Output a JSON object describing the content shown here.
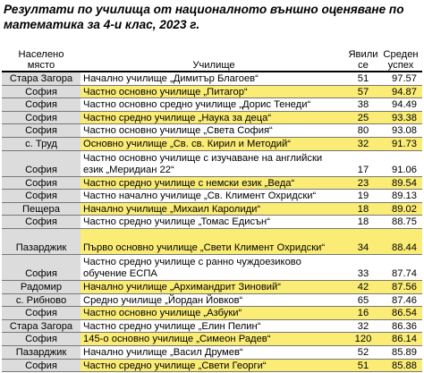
{
  "title": "Резултати по училища от националното външно оценяване по математика за 4-и клас, 2023 г.",
  "headers": {
    "town": "Населено\nмясто",
    "school": "Училище",
    "appeared": "Явили\nсе",
    "score": "Среден\nуспех"
  },
  "colors": {
    "highlight": "#faec75",
    "town_cell": "#dcdcdc"
  },
  "rows": [
    {
      "town": "Стара Загора",
      "school": "Начално училище „Димитър Благоев“",
      "appeared": "51",
      "score": "97.57"
    },
    {
      "town": "София",
      "school": "Частно основно училище „Питагор“",
      "appeared": "57",
      "score": "94.87"
    },
    {
      "town": "София",
      "school": "Частно основно средно училище „Дорис Тенеди“",
      "appeared": "38",
      "score": "94.49"
    },
    {
      "town": "София",
      "school": "Частно средно училище „Наука за деца“",
      "appeared": "25",
      "score": "93.38"
    },
    {
      "town": "София",
      "school": "Частно основно училище „Света София“",
      "appeared": "80",
      "score": "93.08"
    },
    {
      "town": "с. Труд",
      "school": "Основно училище „Св. св. Кирил и Методий“",
      "appeared": "32",
      "score": "91.73"
    },
    {
      "town": "София",
      "school": "Частно основно училище с изучаване на английски език „Меридиан 22“",
      "appeared": "17",
      "score": "91.06"
    },
    {
      "town": "София",
      "school": "Частно средно училище с немски език „Веда“",
      "appeared": "23",
      "score": "89.54"
    },
    {
      "town": "София",
      "school": "Частно начално училище „Св. Климент Охридски“",
      "appeared": "19",
      "score": "89.13"
    },
    {
      "town": "Пещера",
      "school": "Начално училище „Михаил Каролиди“",
      "appeared": "18",
      "score": "89.02"
    },
    {
      "town": "София",
      "school": "Частно средно училище „Томас Едисън“",
      "appeared": "18",
      "score": "88.75"
    },
    {
      "town": "Пазарджик",
      "school": "Първо основно училище „Свети Климент Охридски“",
      "appeared": "34",
      "score": "88.44"
    },
    {
      "town": "София",
      "school": "Частно средно училище с ранно чуждоезиково обучение ЕСПА",
      "appeared": "33",
      "score": "87.74"
    },
    {
      "town": "Радомир",
      "school": "Начално училище „Архимандрит Зиновий“",
      "appeared": "42",
      "score": "87.56"
    },
    {
      "town": "с. Рибново",
      "school": "Средно училище „Йордан Йовков“",
      "appeared": "65",
      "score": "87.46"
    },
    {
      "town": "София",
      "school": "Частно основно училище „Азбуки“",
      "appeared": "16",
      "score": "86.54"
    },
    {
      "town": "Стара Загора",
      "school": "Частно средно училище „Елин Пелин“",
      "appeared": "32",
      "score": "86.36"
    },
    {
      "town": "София",
      "school": "145-о основно училище „Симеон Радев“",
      "appeared": "120",
      "score": "86.14"
    },
    {
      "town": "Пазарджик",
      "school": "Начално училище „Васил Друмев“",
      "appeared": "52",
      "score": "85.89"
    },
    {
      "town": "София",
      "school": "Частно средно училище „Свети Георги“",
      "appeared": "51",
      "score": "85.88"
    }
  ]
}
